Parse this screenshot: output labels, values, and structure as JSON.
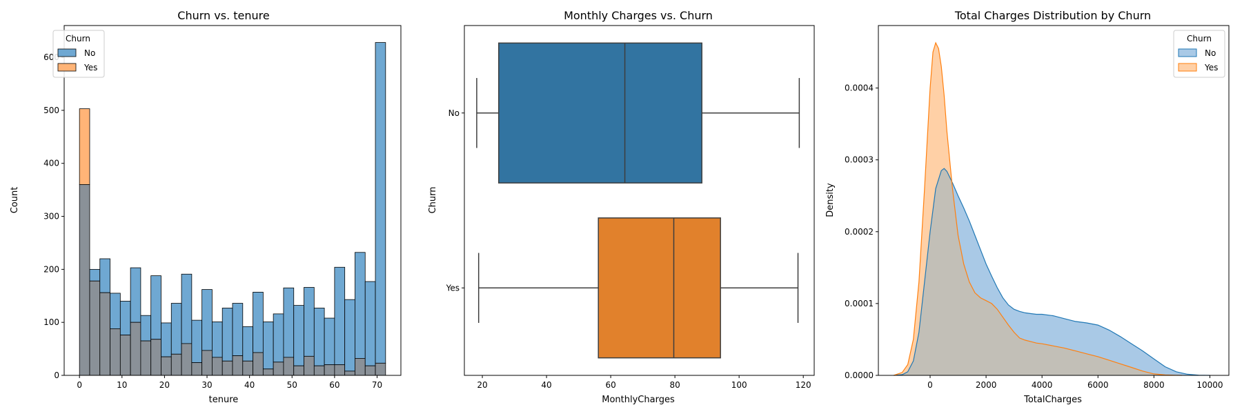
{
  "colors": {
    "no_hist": "#6fa8d2",
    "yes_hist": "#ffb477",
    "overlap_hist": "#8a9198",
    "no_box": "#3274a1",
    "yes_box": "#e1812c",
    "no_line": "#1f77b4",
    "yes_line": "#ff7f0e",
    "no_fill": "#a9c9e6",
    "yes_fill": "#ffd0a6",
    "overlap_fill": "#c2bfb7"
  },
  "chart_data": [
    {
      "type": "bar",
      "title": "Churn vs. tenure",
      "xlabel": "tenure",
      "ylabel": "Count",
      "xlim": [
        -3.6,
        75.6
      ],
      "ylim": [
        0,
        660
      ],
      "xticks": [
        "0",
        "10",
        "20",
        "30",
        "40",
        "50",
        "60",
        "70"
      ],
      "yticks": [
        "0",
        "100",
        "200",
        "300",
        "400",
        "500",
        "600"
      ],
      "bin_edges_start": 0,
      "bin_width": 2.4,
      "legend": {
        "title": "Churn",
        "position": "upper-left",
        "entries": [
          "No",
          "Yes"
        ]
      },
      "series": [
        {
          "name": "No",
          "values": [
            360,
            200,
            220,
            155,
            140,
            203,
            113,
            188,
            99,
            136,
            191,
            104,
            162,
            101,
            127,
            136,
            92,
            157,
            101,
            116,
            165,
            132,
            166,
            127,
            108,
            204,
            143,
            232,
            177,
            628
          ]
        },
        {
          "name": "Yes",
          "values": [
            503,
            178,
            156,
            88,
            76,
            100,
            65,
            68,
            35,
            40,
            60,
            24,
            47,
            34,
            27,
            37,
            27,
            43,
            12,
            25,
            34,
            18,
            36,
            18,
            20,
            20,
            8,
            32,
            18,
            23
          ]
        }
      ]
    },
    {
      "type": "box",
      "title": "Monthly Charges vs. Churn",
      "xlabel": "MonthlyCharges",
      "ylabel": "Churn",
      "xlim": [
        14.4,
        123.4
      ],
      "xticks": [
        "20",
        "40",
        "60",
        "80",
        "100",
        "120"
      ],
      "categories": [
        "No",
        "Yes"
      ],
      "boxes": [
        {
          "name": "No",
          "whisker_low": 18.25,
          "q1": 25.1,
          "median": 64.4,
          "q3": 88.4,
          "whisker_high": 118.75
        },
        {
          "name": "Yes",
          "whisker_low": 18.85,
          "q1": 56.15,
          "median": 79.65,
          "q3": 94.2,
          "whisker_high": 118.35
        }
      ]
    },
    {
      "type": "area",
      "title": "Total Charges Distribution by Churn",
      "xlabel": "TotalCharges",
      "ylabel": "Density",
      "xlim": [
        -1850,
        10680
      ],
      "ylim": [
        0,
        0.000487
      ],
      "xticks": [
        "0",
        "2000",
        "4000",
        "6000",
        "8000",
        "10000"
      ],
      "yticks": [
        "0.0000",
        "0.0001",
        "0.0002",
        "0.0003",
        "0.0004"
      ],
      "legend": {
        "title": "Churn",
        "position": "upper-right",
        "entries": [
          "No",
          "Yes"
        ]
      },
      "series": [
        {
          "name": "No",
          "x": [
            -1300,
            -1000,
            -800,
            -600,
            -400,
            -200,
            0,
            200,
            400,
            500,
            600,
            800,
            1000,
            1200,
            1400,
            1600,
            1800,
            2000,
            2200,
            2400,
            2600,
            2800,
            3000,
            3200,
            3400,
            3600,
            3800,
            4000,
            4400,
            4800,
            5200,
            5600,
            6000,
            6400,
            6800,
            7200,
            7600,
            8000,
            8400,
            8800,
            9200,
            9600,
            10000
          ],
          "y": [
            0,
            1e-06,
            5e-06,
            2e-05,
            6e-05,
            0.00013,
            0.0002,
            0.00026,
            0.000285,
            0.000288,
            0.000284,
            0.000268,
            0.00025,
            0.000233,
            0.000215,
            0.000195,
            0.000175,
            0.000155,
            0.000138,
            0.000122,
            0.000108,
            9.8e-05,
            9.2e-05,
            8.9e-05,
            8.7e-05,
            8.6e-05,
            8.5e-05,
            8.5e-05,
            8.3e-05,
            7.9e-05,
            7.5e-05,
            7.3e-05,
            7e-05,
            6.3e-05,
            5.4e-05,
            4.4e-05,
            3.4e-05,
            2.3e-05,
            1.2e-05,
            5e-06,
            1.5e-06,
            3e-07,
            0
          ]
        },
        {
          "name": "Yes",
          "x": [
            -1300,
            -1000,
            -800,
            -600,
            -400,
            -200,
            0,
            100,
            200,
            300,
            400,
            500,
            600,
            800,
            1000,
            1200,
            1400,
            1600,
            1800,
            2000,
            2200,
            2400,
            2600,
            2800,
            3000,
            3200,
            3400,
            3600,
            3800,
            4000,
            4400,
            4800,
            5200,
            5600,
            6000,
            6400,
            6800,
            7200,
            7600,
            8000,
            8400,
            8800,
            9000
          ],
          "y": [
            0,
            4e-06,
            1.5e-05,
            5e-05,
            0.00013,
            0.00026,
            0.0004,
            0.00045,
            0.000463,
            0.000455,
            0.00043,
            0.00039,
            0.00034,
            0.00026,
            0.000195,
            0.000155,
            0.00013,
            0.000115,
            0.000108,
            0.000104,
            0.0001,
            9.2e-05,
            8.1e-05,
            7e-05,
            6e-05,
            5.2e-05,
            4.9e-05,
            4.7e-05,
            4.5e-05,
            4.4e-05,
            4.1e-05,
            3.8e-05,
            3.4e-05,
            3e-05,
            2.6e-05,
            2.1e-05,
            1.6e-05,
            1.1e-05,
            6e-06,
            2e-06,
            6e-07,
            1e-07,
            0
          ]
        }
      ]
    }
  ]
}
